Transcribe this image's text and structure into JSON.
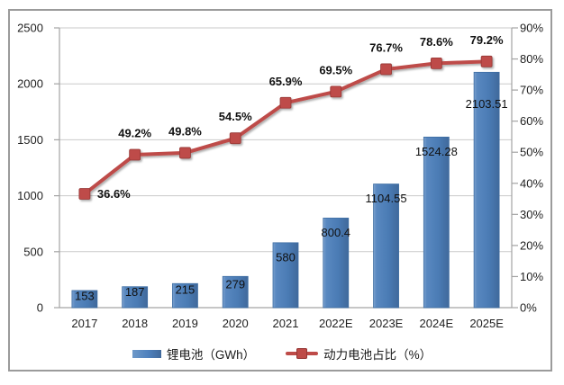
{
  "chart_data": {
    "type": "bar+line combo",
    "categories": [
      "2017",
      "2018",
      "2019",
      "2020",
      "2021",
      "2022E",
      "2023E",
      "2024E",
      "2025E"
    ],
    "series": [
      {
        "name": "锂电池（GWh）",
        "type": "bar",
        "axis": "left",
        "color": "#4F81BD",
        "values": [
          153,
          187,
          215,
          279,
          580,
          800.4,
          1104.55,
          1524.28,
          2103.51
        ],
        "labels": [
          "153",
          "187",
          "215",
          "279",
          "580",
          "800.4",
          "1104.55",
          "1524.28",
          "2103.51"
        ]
      },
      {
        "name": "动力电池占比（%）",
        "type": "line",
        "axis": "right",
        "color": "#C0504D",
        "values": [
          36.6,
          49.2,
          49.8,
          54.5,
          65.9,
          69.5,
          76.7,
          78.6,
          79.2
        ],
        "labels": [
          "36.6%",
          "49.2%",
          "49.8%",
          "54.5%",
          "65.9%",
          "69.5%",
          "76.7%",
          "78.6%",
          "79.2%"
        ]
      }
    ],
    "left_axis": {
      "min": 0,
      "max": 2500,
      "step": 500,
      "ticks": [
        "0",
        "500",
        "1000",
        "1500",
        "2000",
        "2500"
      ]
    },
    "right_axis": {
      "min": 0,
      "max": 90,
      "step": 10,
      "ticks": [
        "0%",
        "10%",
        "20%",
        "30%",
        "40%",
        "50%",
        "60%",
        "70%",
        "80%",
        "90%"
      ]
    },
    "grid": true,
    "legend_position": "bottom",
    "colors": {
      "bar_fill": "#4F81BD",
      "bar_fill_light": "#6E99C9",
      "bar_fill_dark": "#40699B",
      "bar_border": "#3D6DA3",
      "line": "#BE4B48",
      "marker_border": "#953735",
      "grid": "#C9C9C9",
      "axis": "#A3A3A3",
      "frame_border": "#9B9B9B",
      "text": "#1F1F1F"
    }
  }
}
